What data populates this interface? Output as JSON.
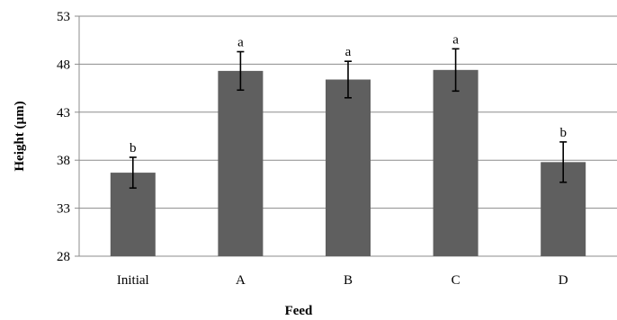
{
  "chart_data": {
    "type": "bar",
    "title": "",
    "xlabel": "Feed",
    "ylabel": "Height (µm)",
    "categories": [
      "Initial",
      "A",
      "B",
      "C",
      "D"
    ],
    "values": [
      36.7,
      47.3,
      46.4,
      47.4,
      37.8
    ],
    "errors": [
      1.6,
      2.0,
      1.9,
      2.2,
      2.1
    ],
    "significance": [
      "b",
      "a",
      "a",
      "a",
      "b"
    ],
    "ylim": [
      28,
      53
    ],
    "yticks": [
      28,
      33,
      38,
      43,
      48,
      53
    ],
    "grid": true,
    "legend": "none",
    "bar_color": "#5f5f5f"
  }
}
